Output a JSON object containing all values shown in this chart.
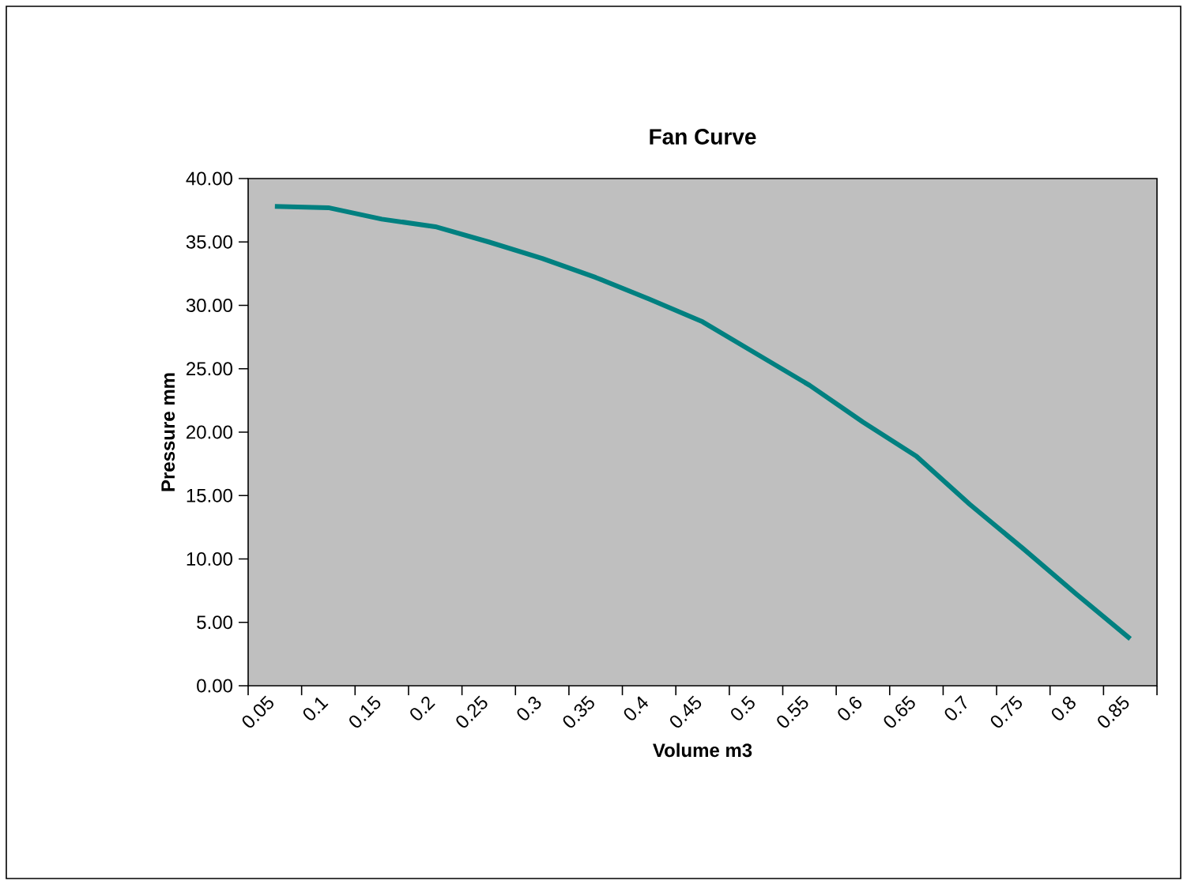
{
  "chart_data": {
    "type": "line",
    "title": "Fan Curve",
    "xlabel": "Volume m3",
    "ylabel": "Pressure mm",
    "categories": [
      "0.05",
      "0.1",
      "0.15",
      "0.2",
      "0.25",
      "0.3",
      "0.35",
      "0.4",
      "0.45",
      "0.5",
      "0.55",
      "0.6",
      "0.65",
      "0.7",
      "0.75",
      "0.8",
      "0.85"
    ],
    "series": [
      {
        "color": "#008080",
        "values": [
          37.8,
          37.7,
          36.8,
          36.2,
          35.0,
          33.7,
          32.2,
          30.5,
          28.7,
          26.2,
          23.7,
          20.8,
          18.1,
          14.3,
          10.8,
          7.2,
          3.7
        ]
      }
    ],
    "ylim": [
      0,
      40
    ],
    "yticks": [
      {
        "value": 0,
        "label": "0.00"
      },
      {
        "value": 5,
        "label": "5.00"
      },
      {
        "value": 10,
        "label": "10.00"
      },
      {
        "value": 15,
        "label": "15.00"
      },
      {
        "value": 20,
        "label": "20.00"
      },
      {
        "value": 25,
        "label": "25.00"
      },
      {
        "value": 30,
        "label": "30.00"
      },
      {
        "value": 35,
        "label": "35.00"
      },
      {
        "value": 40,
        "label": "40.00"
      }
    ],
    "marker": "none",
    "line_style": "solid"
  }
}
